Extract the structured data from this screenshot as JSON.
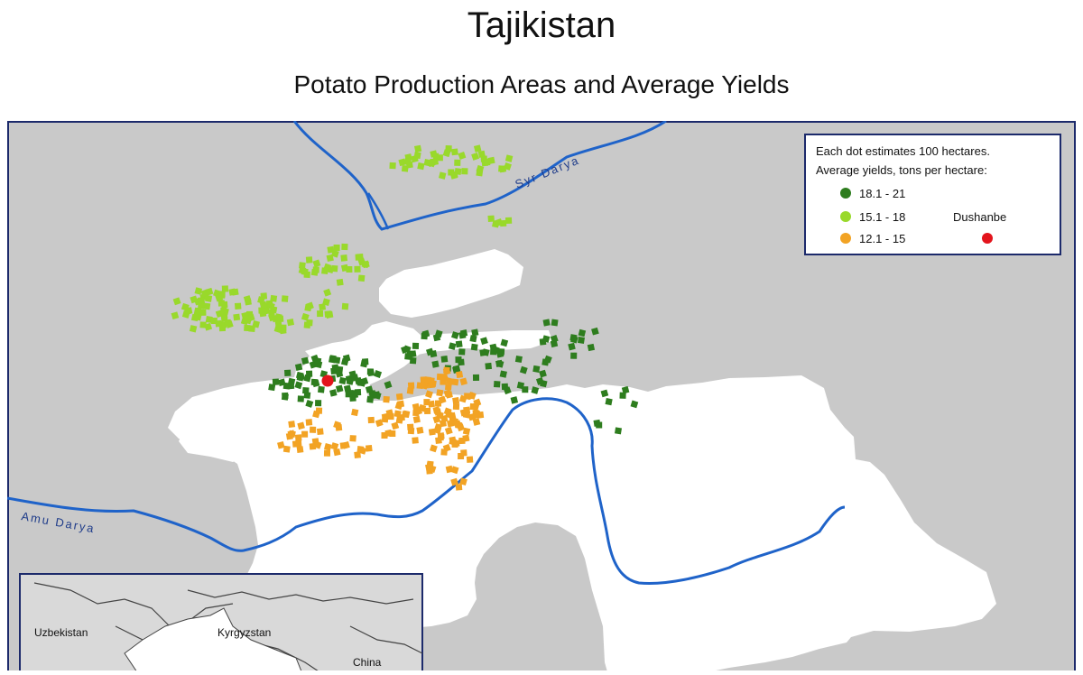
{
  "title": "Tajikistan",
  "subtitle": "Potato Production Areas and Average Yields",
  "legend": {
    "line1": "Each dot estimates 100 hectares.",
    "line2": "Average yields, tons per hectare:",
    "classes": [
      {
        "label": "18.1 - 21",
        "color": "#2e7d1e"
      },
      {
        "label": "15.1 - 18",
        "color": "#99d92b"
      },
      {
        "label": "12.1 - 15",
        "color": "#f2a324"
      }
    ],
    "capital_label": "Dushanbe",
    "capital_color": "#e3141c"
  },
  "rivers": {
    "syr_darya": "Syr Darya",
    "amu_darya": "Amu Darya"
  },
  "inset": {
    "uzbekistan": "Uzbekistan",
    "kyrgyzstan": "Kyrgyzstan",
    "china": "China"
  },
  "colors": {
    "land": "#ffffff",
    "background": "#c9c9c9",
    "river": "#1f63c9",
    "frame": "#1c2a6b"
  }
}
